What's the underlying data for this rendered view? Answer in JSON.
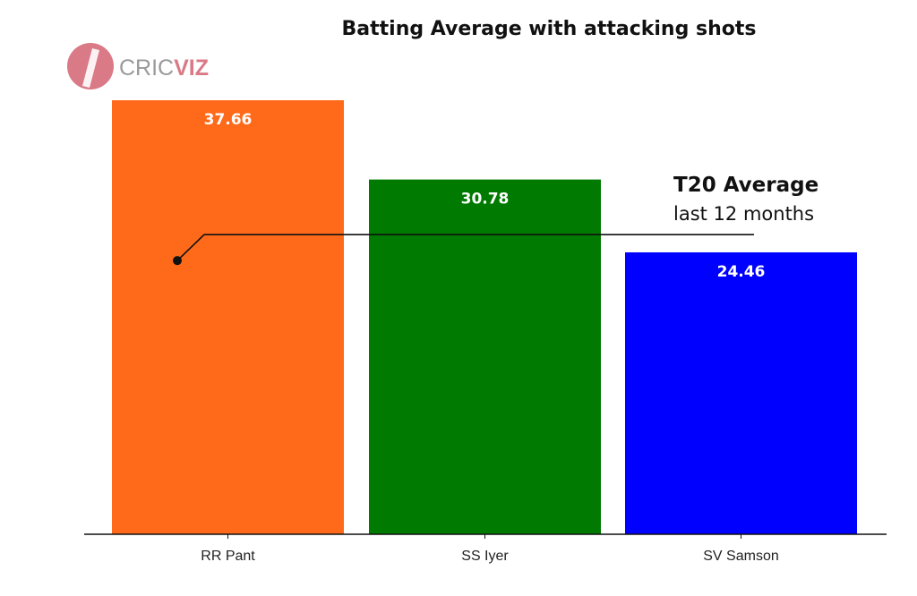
{
  "logo": {
    "text_part1": "CRIC",
    "text_part2": "VIZ",
    "color": "#d97a86"
  },
  "chart_data": {
    "type": "bar",
    "title": "Batting Average with attacking shots",
    "categories": [
      "RR Pant",
      "SS Iyer",
      "SV Samson"
    ],
    "values": [
      37.66,
      30.78,
      24.46
    ],
    "value_labels": [
      "37.66",
      "30.78",
      "24.46"
    ],
    "colors": [
      "#ff6a1a",
      "#007a00",
      "#0000ff"
    ],
    "ylim": [
      0,
      37.66
    ],
    "grid": false,
    "annotation": {
      "title": "T20 Average",
      "subtitle": "last 12 months",
      "value": 26
    }
  }
}
